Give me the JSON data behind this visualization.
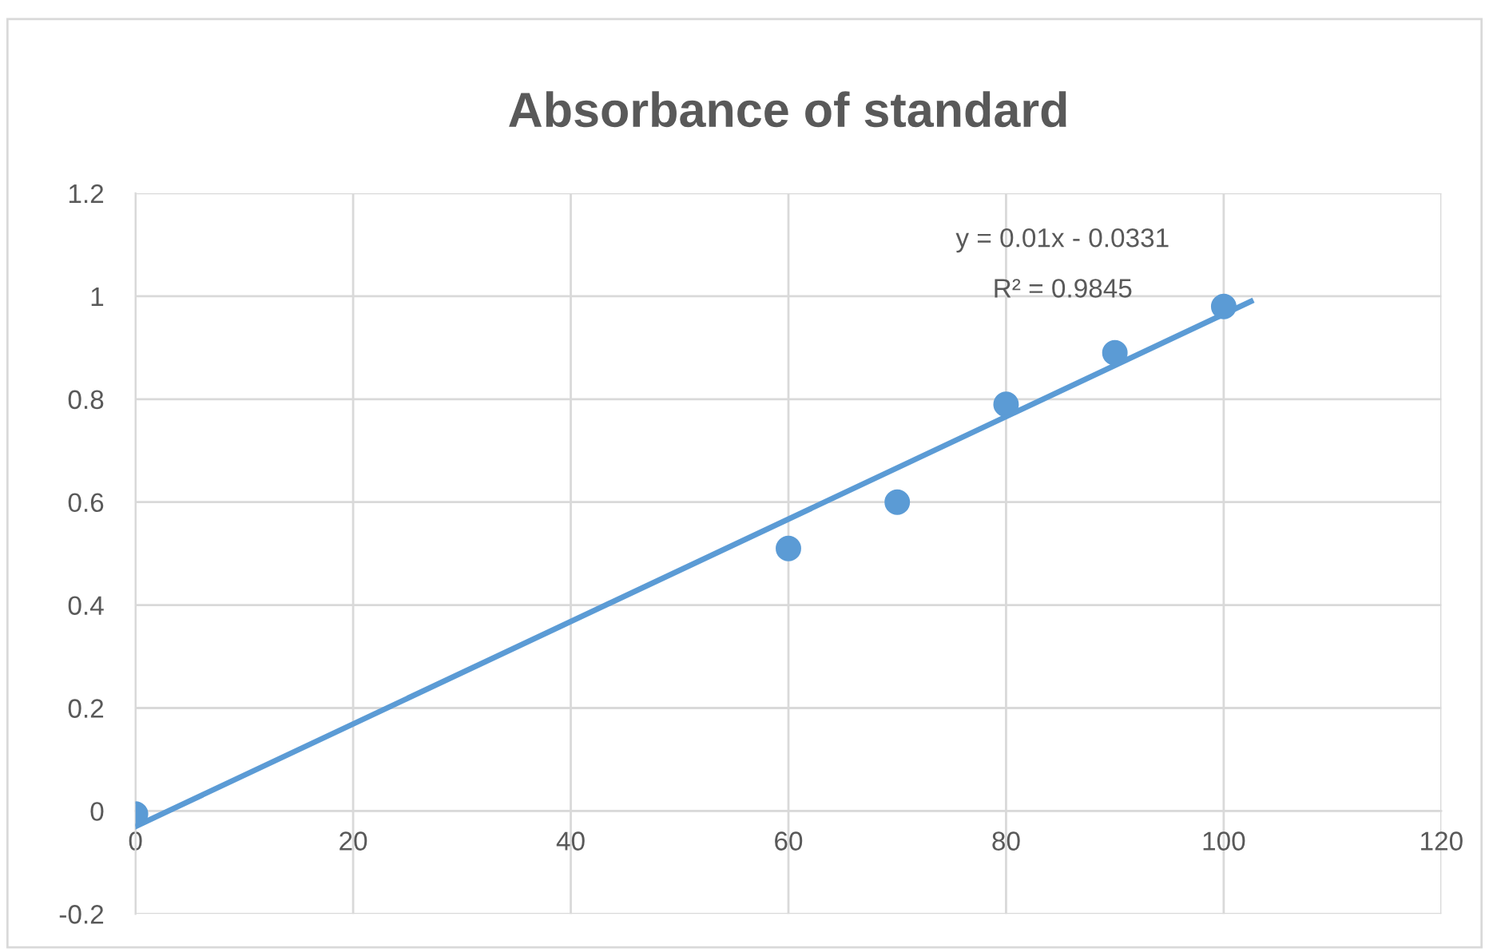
{
  "chart_data": {
    "type": "scatter",
    "title": "Absorbance of standard",
    "series": [
      {
        "color": "#5b9bd5",
        "x": [
          0,
          60,
          70,
          80,
          90,
          100
        ],
        "values": [
          -0.006,
          0.51,
          0.6,
          0.79,
          0.89,
          0.98
        ],
        "marker": "circle"
      },
      {
        "type": "line",
        "color": "#5b9bd5",
        "x": [
          0,
          102.5
        ],
        "values": [
          -0.03,
          0.99
        ],
        "marker": "none",
        "line_style": "solid"
      }
    ],
    "annotations": [
      "y = 0.01x - 0.0331",
      "R² = 0.9845"
    ],
    "xlim": [
      0,
      120
    ],
    "xticks": [
      0,
      20,
      40,
      60,
      80,
      100,
      120
    ],
    "ylim": [
      -0.2,
      1.2
    ],
    "yticks": [
      -0.2,
      0,
      0.2,
      0.4,
      0.6,
      0.8,
      1,
      1.2
    ],
    "grid": true,
    "legend": false
  }
}
